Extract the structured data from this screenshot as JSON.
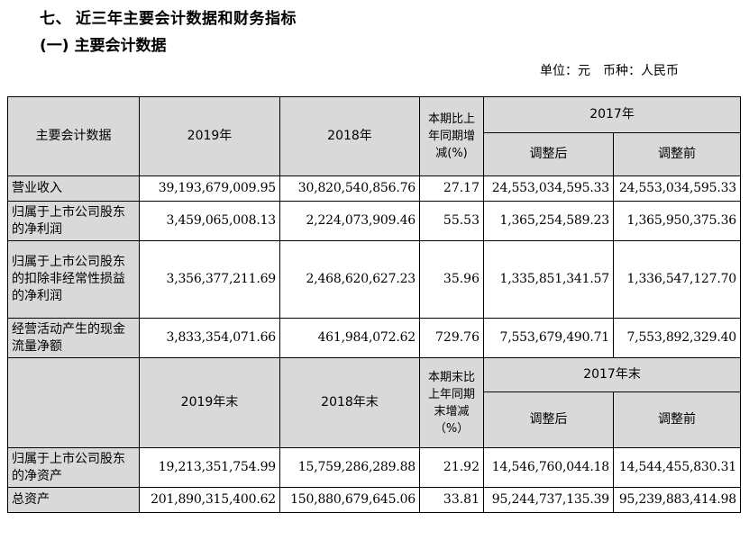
{
  "heading": {
    "section_number": "七、",
    "section_title": "近三年主要会计数据和财务指标",
    "subsection_title": "(一) 主要会计数据"
  },
  "unit_line": {
    "unit": "单位：元",
    "currency": "币种：人民币"
  },
  "table1": {
    "header": {
      "item": "主要会计数据",
      "col_2019": "2019年",
      "col_2018": "2018年",
      "col_change": "本期比上年同期增减(%)",
      "col_2017": "2017年",
      "col_after": "调整后",
      "col_before": "调整前"
    },
    "rows": [
      {
        "label": "营业收入",
        "v2019": "39,193,679,009.95",
        "v2018": "30,820,540,856.76",
        "change": "27.17",
        "after": "24,553,034,595.33",
        "before": "24,553,034,595.33"
      },
      {
        "label": "归属于上市公司股东的净利润",
        "v2019": "3,459,065,008.13",
        "v2018": "2,224,073,909.46",
        "change": "55.53",
        "after": "1,365,254,589.23",
        "before": "1,365,950,375.36"
      },
      {
        "label": "归属于上市公司股东的扣除非经常性损益的净利润",
        "v2019": "3,356,377,211.69",
        "v2018": "2,468,620,627.23",
        "change": "35.96",
        "after": "1,335,851,341.57",
        "before": "1,336,547,127.70"
      },
      {
        "label": "经营活动产生的现金流量净额",
        "v2019": "3,833,354,071.66",
        "v2018": "461,984,072.62",
        "change": "729.76",
        "after": "7,553,679,490.71",
        "before": "7,553,892,329.40"
      }
    ]
  },
  "table2": {
    "header": {
      "col_2019": "2019年末",
      "col_2018": "2018年末",
      "col_change": "本期末比上年同期末增减（%）",
      "col_2017": "2017年末",
      "col_after": "调整后",
      "col_before": "调整前"
    },
    "rows": [
      {
        "label": "归属于上市公司股东的净资产",
        "v2019": "19,213,351,754.99",
        "v2018": "15,759,286,289.88",
        "change": "21.92",
        "after": "14,546,760,044.18",
        "before": "14,544,455,830.31"
      },
      {
        "label": "总资产",
        "v2019": "201,890,315,400.62",
        "v2018": "150,880,679,645.06",
        "change": "33.81",
        "after": "95,244,737,135.39",
        "before": "95,239,883,414.98"
      }
    ]
  }
}
